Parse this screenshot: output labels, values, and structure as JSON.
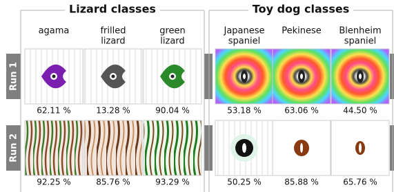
{
  "run_labels": [
    "Run 1",
    "Run 2"
  ],
  "groups": [
    {
      "title": "Lizard classes",
      "columns": [
        [
          "agama"
        ],
        [
          "frilled",
          "lizard"
        ],
        [
          "green",
          "lizard"
        ]
      ],
      "runs": [
        [
          "62.11 %",
          "13.28 %",
          "90.04 %"
        ],
        [
          "92.25 %",
          "85.76 %",
          "93.29 %"
        ]
      ]
    },
    {
      "title": "Toy dog classes",
      "columns": [
        [
          "Japanese",
          "spaniel"
        ],
        [
          "Pekinese"
        ],
        [
          "Blenheim",
          "spaniel"
        ]
      ],
      "runs": [
        [
          "53.18 %",
          "63.06 %",
          "44.50 %"
        ],
        [
          "50.25 %",
          "85.88 %",
          "65.76 %"
        ]
      ]
    }
  ]
}
